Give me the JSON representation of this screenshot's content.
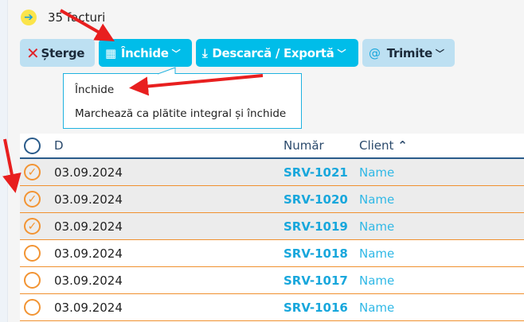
{
  "summary": {
    "count_label": "35 facturi",
    "icon": "arrow-right-icon"
  },
  "toolbar": {
    "delete": "Șterge",
    "close": "Închide",
    "download": "Descarcă / Exportă",
    "send": "Trimite"
  },
  "dropdown": {
    "items": [
      "Închide",
      "Marchează ca plătite integral și închide"
    ]
  },
  "table": {
    "headers": {
      "date": "D",
      "number": "Număr",
      "client": "Client"
    },
    "rows": [
      {
        "date": "03.09.2024",
        "number": "SRV-1021",
        "client": "Name",
        "selected": true
      },
      {
        "date": "03.09.2024",
        "number": "SRV-1020",
        "client": "Name",
        "selected": true
      },
      {
        "date": "03.09.2024",
        "number": "SRV-1019",
        "client": "Name",
        "selected": true
      },
      {
        "date": "03.09.2024",
        "number": "SRV-1018",
        "client": "Name",
        "selected": false
      },
      {
        "date": "03.09.2024",
        "number": "SRV-1017",
        "client": "Name",
        "selected": false
      },
      {
        "date": "03.09.2024",
        "number": "SRV-1016",
        "client": "Name",
        "selected": false
      }
    ]
  },
  "colors": {
    "accent": "#00bde9",
    "selected_check": "#f29433",
    "annotation": "#e81f1f"
  }
}
